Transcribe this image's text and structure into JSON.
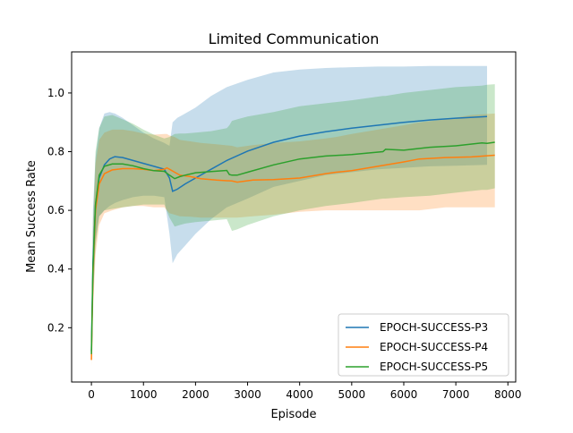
{
  "chart_data": {
    "type": "line",
    "title": "Limited Communication",
    "xlabel": "Episode",
    "ylabel": "Mean Success Rate",
    "xlim": [
      -380,
      8150
    ],
    "ylim": [
      0.015,
      1.14
    ],
    "xticks": [
      0,
      1000,
      2000,
      3000,
      4000,
      5000,
      6000,
      7000,
      8000
    ],
    "yticks": [
      0.2,
      0.4,
      0.6,
      0.8,
      1.0
    ],
    "xtick_labels": [
      "0",
      "1000",
      "2000",
      "3000",
      "4000",
      "5000",
      "6000",
      "7000",
      "8000"
    ],
    "ytick_labels": [
      "0.2",
      "0.4",
      "0.6",
      "0.8",
      "1.0"
    ],
    "grid": false,
    "legend_position": "lower-right",
    "series": [
      {
        "name": "EPOCH-SUCCESS-P3",
        "color": "#1f77b4",
        "x": [
          0,
          30,
          80,
          150,
          250,
          350,
          450,
          600,
          800,
          1000,
          1200,
          1400,
          1500,
          1560,
          1650,
          1800,
          2000,
          2300,
          2600,
          3000,
          3500,
          4000,
          4500,
          5000,
          5500,
          6000,
          6500,
          7000,
          7600
        ],
        "y": [
          0.12,
          0.42,
          0.62,
          0.71,
          0.755,
          0.775,
          0.783,
          0.78,
          0.77,
          0.76,
          0.75,
          0.74,
          0.71,
          0.665,
          0.672,
          0.69,
          0.71,
          0.74,
          0.77,
          0.802,
          0.832,
          0.853,
          0.868,
          0.88,
          0.89,
          0.9,
          0.908,
          0.914,
          0.92
        ],
        "lower": [
          0.1,
          0.28,
          0.5,
          0.58,
          0.6,
          0.615,
          0.625,
          0.635,
          0.645,
          0.65,
          0.65,
          0.645,
          0.52,
          0.42,
          0.45,
          0.48,
          0.52,
          0.57,
          0.61,
          0.64,
          0.68,
          0.7,
          0.72,
          0.73,
          0.74,
          0.745,
          0.75,
          0.752,
          0.755
        ],
        "upper": [
          0.14,
          0.6,
          0.78,
          0.88,
          0.93,
          0.935,
          0.93,
          0.915,
          0.89,
          0.865,
          0.845,
          0.83,
          0.82,
          0.9,
          0.915,
          0.93,
          0.95,
          0.99,
          1.02,
          1.045,
          1.07,
          1.08,
          1.085,
          1.088,
          1.09,
          1.09,
          1.092,
          1.092,
          1.092
        ]
      },
      {
        "name": "EPOCH-SUCCESS-P4",
        "color": "#ff7f0e",
        "x": [
          0,
          30,
          80,
          150,
          250,
          400,
          600,
          800,
          1000,
          1200,
          1400,
          1450,
          1500,
          1600,
          1700,
          1900,
          2100,
          2400,
          2700,
          2800,
          3100,
          3500,
          4000,
          4500,
          4700,
          5000,
          5500,
          6000,
          6300,
          6800,
          7300,
          7750
        ],
        "y": [
          0.09,
          0.38,
          0.6,
          0.69,
          0.725,
          0.738,
          0.742,
          0.742,
          0.74,
          0.735,
          0.74,
          0.745,
          0.74,
          0.73,
          0.72,
          0.715,
          0.708,
          0.703,
          0.7,
          0.696,
          0.703,
          0.705,
          0.71,
          0.725,
          0.73,
          0.735,
          0.75,
          0.765,
          0.775,
          0.78,
          0.782,
          0.788
        ],
        "lower": [
          0.07,
          0.25,
          0.45,
          0.55,
          0.59,
          0.6,
          0.61,
          0.615,
          0.615,
          0.61,
          0.61,
          0.6,
          0.59,
          0.585,
          0.58,
          0.578,
          0.575,
          0.575,
          0.575,
          0.575,
          0.58,
          0.585,
          0.595,
          0.6,
          0.6,
          0.6,
          0.6,
          0.6,
          0.6,
          0.61,
          0.61,
          0.61
        ],
        "upper": [
          0.11,
          0.52,
          0.76,
          0.84,
          0.865,
          0.875,
          0.875,
          0.87,
          0.862,
          0.858,
          0.86,
          0.86,
          0.855,
          0.85,
          0.84,
          0.835,
          0.83,
          0.825,
          0.82,
          0.815,
          0.822,
          0.83,
          0.835,
          0.845,
          0.85,
          0.86,
          0.875,
          0.89,
          0.9,
          0.91,
          0.925,
          0.93
        ]
      },
      {
        "name": "EPOCH-SUCCESS-P5",
        "color": "#2ca02c",
        "x": [
          0,
          30,
          80,
          150,
          250,
          400,
          600,
          800,
          1000,
          1200,
          1400,
          1500,
          1600,
          1700,
          1800,
          2000,
          2300,
          2600,
          2650,
          2700,
          2800,
          3000,
          3500,
          4000,
          4500,
          5000,
          5600,
          5650,
          6000,
          6500,
          7000,
          7500,
          7600,
          7750
        ],
        "y": [
          0.11,
          0.4,
          0.62,
          0.72,
          0.75,
          0.758,
          0.758,
          0.752,
          0.742,
          0.735,
          0.733,
          0.72,
          0.708,
          0.715,
          0.72,
          0.728,
          0.732,
          0.736,
          0.722,
          0.72,
          0.72,
          0.73,
          0.755,
          0.775,
          0.785,
          0.79,
          0.8,
          0.808,
          0.805,
          0.815,
          0.82,
          0.83,
          0.828,
          0.832
        ],
        "lower": [
          0.09,
          0.3,
          0.48,
          0.58,
          0.6,
          0.605,
          0.61,
          0.615,
          0.62,
          0.62,
          0.62,
          0.575,
          0.545,
          0.55,
          0.555,
          0.56,
          0.565,
          0.57,
          0.55,
          0.53,
          0.535,
          0.55,
          0.58,
          0.6,
          0.615,
          0.625,
          0.64,
          0.64,
          0.645,
          0.65,
          0.66,
          0.67,
          0.67,
          0.675
        ],
        "upper": [
          0.13,
          0.56,
          0.8,
          0.88,
          0.92,
          0.925,
          0.91,
          0.895,
          0.875,
          0.858,
          0.845,
          0.85,
          0.86,
          0.862,
          0.862,
          0.865,
          0.87,
          0.88,
          0.89,
          0.905,
          0.91,
          0.92,
          0.935,
          0.955,
          0.965,
          0.975,
          0.99,
          0.99,
          1.0,
          1.01,
          1.02,
          1.025,
          1.028,
          1.03
        ]
      }
    ]
  }
}
